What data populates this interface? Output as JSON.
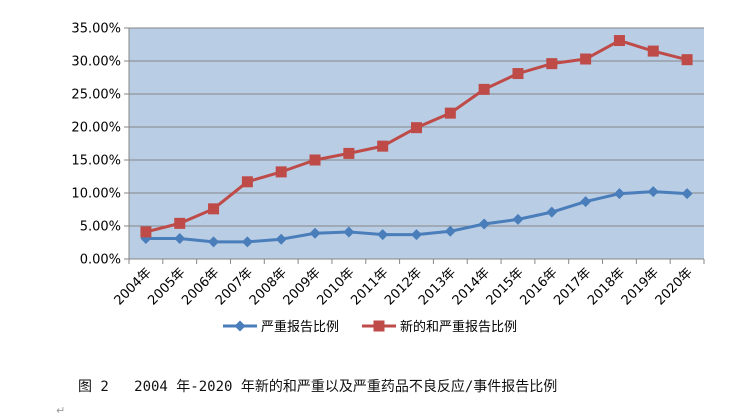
{
  "chart_data": {
    "type": "line",
    "title": "",
    "xlabel": "",
    "ylabel": "",
    "categories": [
      "2004年",
      "2005年",
      "2006年",
      "2007年",
      "2008年",
      "2009年",
      "2010年",
      "2011年",
      "2012年",
      "2013年",
      "2014年",
      "2015年",
      "2016年",
      "2017年",
      "2018年",
      "2019年",
      "2020年"
    ],
    "y_ticks": [
      "0.00%",
      "5.00%",
      "10.00%",
      "15.00%",
      "20.00%",
      "25.00%",
      "30.00%",
      "35.00%"
    ],
    "ylim": [
      0,
      35
    ],
    "grid": "horizontal",
    "legend_position": "bottom",
    "plot_background": "#b9cde5",
    "series": [
      {
        "name": "严重报告比例",
        "color": "#4a7ebb",
        "marker": "diamond",
        "values": [
          3.1,
          3.1,
          2.6,
          2.6,
          3.0,
          3.9,
          4.1,
          3.7,
          3.7,
          4.2,
          5.3,
          6.0,
          7.1,
          8.7,
          9.9,
          10.2,
          9.9
        ]
      },
      {
        "name": "新的和严重报告比例",
        "color": "#be4b48",
        "marker": "square",
        "values": [
          4.1,
          5.4,
          7.6,
          11.7,
          13.2,
          15.0,
          16.0,
          17.1,
          19.9,
          22.1,
          25.7,
          28.1,
          29.6,
          30.3,
          33.1,
          31.5,
          30.2
        ]
      }
    ]
  },
  "caption": "图 2   2004 年-2020 年新的和严重以及严重药品不良反应/事件报告比例",
  "paragraph_mark": "↵"
}
